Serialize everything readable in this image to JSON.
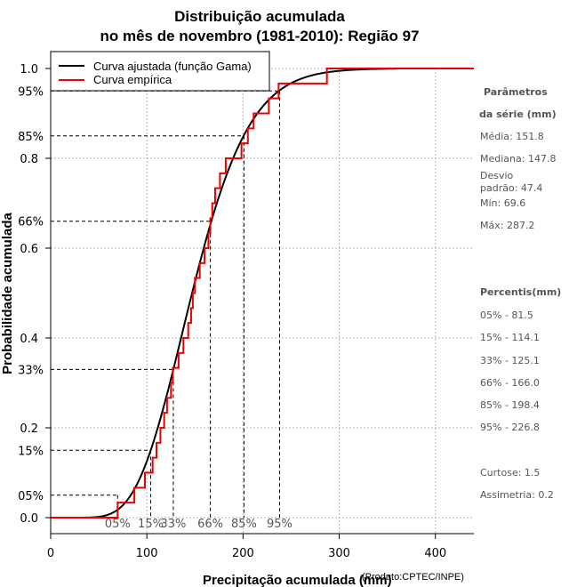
{
  "chart_data": {
    "type": "line",
    "title_line1": "Distribuição acumulada",
    "title_line2": "no mês de novembro (1981-2010): Região 97",
    "xlabel": "Precipitação acumulada (mm)",
    "ylabel": "Probabilidade acumulada",
    "credit": "(Produto:CPTEC/INPE)",
    "xlim": [
      0,
      440
    ],
    "ylim": [
      0,
      1
    ],
    "x_ticks": [
      0,
      100,
      200,
      300,
      400
    ],
    "y_ticks": [
      0.0,
      0.2,
      0.4,
      0.6,
      0.8,
      1.0
    ],
    "y_tick_labels": [
      "0.0",
      "0.2",
      "0.4",
      "0.6",
      "0.8",
      "1.0"
    ],
    "grid": true,
    "legend": {
      "position": "top-left",
      "entries": [
        {
          "label": "Curva ajustada (função Gama)",
          "color": "#000000"
        },
        {
          "label": "Curva empírica",
          "color": "#ee0000"
        }
      ]
    },
    "series": [
      {
        "name": "Curva ajustada (função Gama)",
        "color": "#000000",
        "shape": 10.3,
        "scale": 14.75
      },
      {
        "name": "Curva empírica",
        "color": "#ee0000",
        "sample_size": 30,
        "values_mm": [
          69.6,
          87,
          98,
          106,
          110,
          114.1,
          118,
          121,
          125.1,
          127,
          133,
          138,
          143,
          146,
          147.8,
          150,
          155,
          160,
          164,
          166.0,
          168,
          171,
          176,
          182,
          198.4,
          205,
          211,
          226.8,
          237,
          287.2
        ]
      }
    ],
    "percentiles": [
      {
        "label": "05%",
        "p": 0.05,
        "value": 81.5
      },
      {
        "label": "15%",
        "p": 0.15,
        "value": 114.1
      },
      {
        "label": "33%",
        "p": 0.33,
        "value": 125.1
      },
      {
        "label": "66%",
        "p": 0.66,
        "value": 166.0
      },
      {
        "label": "85%",
        "p": 0.85,
        "value": 198.4
      },
      {
        "label": "95%",
        "p": 0.95,
        "value": 226.8
      }
    ],
    "percentile_guides": [
      {
        "label": "05%",
        "p": 0.05,
        "x": 69.6
      },
      {
        "label": "15%",
        "p": 0.15,
        "x": 104
      },
      {
        "label": "33%",
        "p": 0.33,
        "x": 127.5
      },
      {
        "label": "66%",
        "p": 0.66,
        "x": 166
      },
      {
        "label": "85%",
        "p": 0.85,
        "x": 201
      },
      {
        "label": "95%",
        "p": 0.95,
        "x": 238
      }
    ]
  },
  "side_panel": {
    "params_title_1": "Parâmetros",
    "params_title_2": "da série (mm)",
    "media": "Média: 151.8",
    "mediana": "Mediana: 147.8",
    "desvio_1": "Desvio",
    "desvio_2": "padrão: 47.4",
    "min": "Mín: 69.6",
    "max": "Máx: 287.2",
    "percentis_title": "Percentis(mm)",
    "p05": "05% - 81.5",
    "p15": "15% - 114.1",
    "p33": "33% - 125.1",
    "p66": "66% - 166.0",
    "p85": "85% - 198.4",
    "p95": "95% - 226.8",
    "curtose": "Curtose: 1.5",
    "assimetria": "Assimetria: 0.2"
  }
}
